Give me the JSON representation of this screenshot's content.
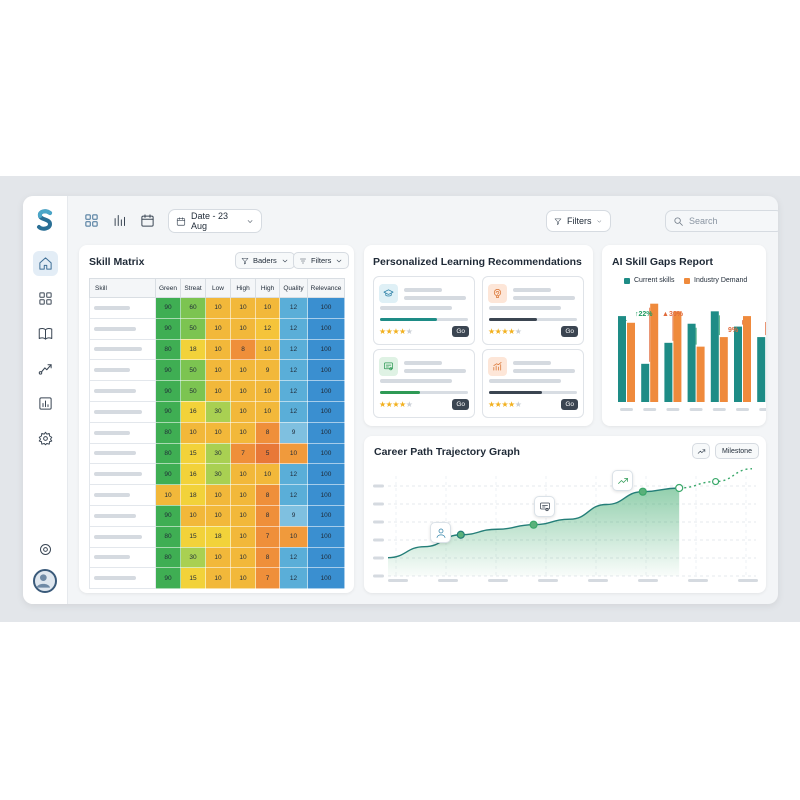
{
  "topbar": {
    "date_label": "Date - 23 Aug",
    "filters_label": "Filters",
    "search_placeholder": "Search"
  },
  "sidebar": {
    "items": [
      "home",
      "grid",
      "book",
      "trend",
      "report",
      "settings"
    ],
    "active": "home"
  },
  "skill_matrix": {
    "title": "Skill Matrix",
    "sort_label": "Baders",
    "filter_label": "Filters",
    "columns": [
      "Skill",
      "Green",
      "Streat",
      "Low",
      "High",
      "High",
      "Quality",
      "Relevance"
    ],
    "rows": [
      [
        90,
        60,
        10,
        10,
        10,
        12,
        100
      ],
      [
        90,
        50,
        10,
        10,
        12,
        12,
        100
      ],
      [
        80,
        18,
        10,
        8,
        10,
        12,
        100
      ],
      [
        90,
        50,
        10,
        10,
        9,
        12,
        100
      ],
      [
        90,
        50,
        10,
        10,
        10,
        12,
        100
      ],
      [
        90,
        16,
        30,
        10,
        10,
        12,
        100
      ],
      [
        80,
        10,
        10,
        10,
        8,
        9,
        100
      ],
      [
        80,
        15,
        30,
        7,
        5,
        10,
        100
      ],
      [
        90,
        16,
        30,
        10,
        10,
        12,
        100
      ],
      [
        10,
        18,
        10,
        10,
        8,
        12,
        100
      ],
      [
        90,
        10,
        10,
        10,
        8,
        9,
        100
      ],
      [
        80,
        15,
        18,
        10,
        7,
        10,
        100
      ],
      [
        80,
        30,
        10,
        10,
        8,
        12,
        100
      ],
      [
        90,
        15,
        10,
        10,
        7,
        12,
        100
      ]
    ]
  },
  "recommendations": {
    "title": "Personalized Learning Recommendations",
    "cards": [
      {
        "icon": "graduation-cap-icon",
        "progress": 0.65,
        "rating": 4,
        "action": "Go"
      },
      {
        "icon": "brain-icon",
        "progress": 0.55,
        "rating": 4,
        "action": "Go"
      },
      {
        "icon": "certificate-icon",
        "progress": 0.45,
        "rating": 4,
        "action": "Go"
      },
      {
        "icon": "growth-chart-icon",
        "progress": 0.6,
        "rating": 4,
        "action": "Go"
      }
    ]
  },
  "skill_gaps": {
    "title": "AI Skill Gaps Report",
    "legend": [
      "Current skills",
      "Industry Demand"
    ],
    "colors": {
      "current": "#1e8c86",
      "demand": "#ef8a3c",
      "up": "#1e9b60",
      "down": "#e06a3a"
    },
    "annotations": [
      "22%",
      "30%",
      "9%"
    ]
  },
  "career_path": {
    "title": "Career Path Trajectory Graph",
    "milestone_label": "Milestone",
    "milestone_icons": [
      "user-icon",
      "certificate-icon",
      "trend-up-icon"
    ]
  },
  "chart_data": [
    {
      "type": "bar",
      "title": "AI Skill Gaps Report",
      "categories": [
        "",
        "",
        "",
        "",
        "",
        "",
        ""
      ],
      "series": [
        {
          "name": "Current skills",
          "values": [
            90,
            40,
            62,
            82,
            95,
            79,
            68
          ]
        },
        {
          "name": "Industry Demand",
          "values": [
            83,
            103,
            95,
            58,
            68,
            90,
            88
          ]
        }
      ],
      "ylim": [
        0,
        110
      ]
    },
    {
      "type": "area",
      "title": "Career Path Trajectory Graph",
      "x": [
        0,
        1,
        2,
        3,
        4,
        5,
        6,
        7,
        8,
        9,
        10
      ],
      "series": [
        {
          "values": [
            20,
            32,
            45,
            51,
            56,
            62,
            78,
            92,
            96,
            null,
            null
          ]
        },
        {
          "name": "Milestone",
          "values": [
            null,
            null,
            null,
            null,
            null,
            null,
            null,
            null,
            96,
            103,
            117
          ]
        }
      ],
      "ylim": [
        0,
        120
      ]
    }
  ]
}
